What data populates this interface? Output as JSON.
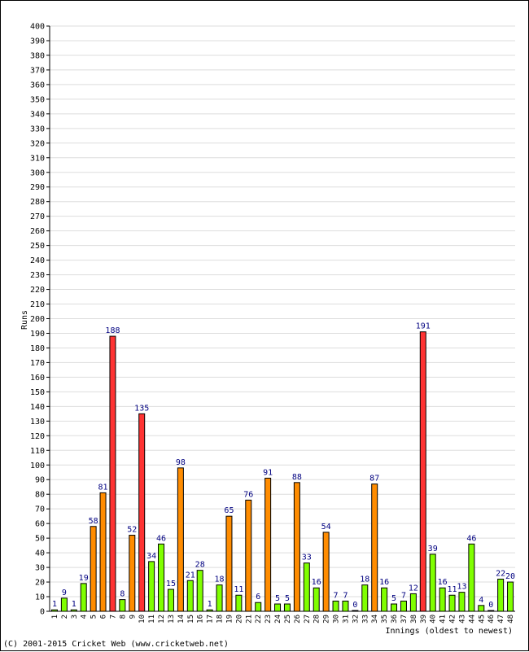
{
  "chart_data": {
    "type": "bar",
    "ylabel": "Runs",
    "xlabel": "Innings (oldest to newest)",
    "ylim": [
      0,
      400
    ],
    "ytick_step": 10,
    "grid": true,
    "colors": {
      "low": "#80ff00",
      "fifty": "#ff8c00",
      "hundred": "#ff3333",
      "label": "#000080",
      "grid": "#dddddd"
    },
    "categories": [
      "1",
      "2",
      "3",
      "4",
      "5",
      "6",
      "7",
      "8",
      "9",
      "10",
      "11",
      "12",
      "13",
      "14",
      "15",
      "16",
      "17",
      "18",
      "19",
      "20",
      "21",
      "22",
      "23",
      "24",
      "25",
      "26",
      "27",
      "28",
      "29",
      "30",
      "31",
      "32",
      "33",
      "34",
      "35",
      "36",
      "37",
      "38",
      "39",
      "40",
      "41",
      "42",
      "43",
      "44",
      "45",
      "46",
      "47",
      "48"
    ],
    "values": [
      1,
      9,
      1,
      19,
      58,
      81,
      188,
      8,
      52,
      135,
      34,
      46,
      15,
      98,
      21,
      28,
      1,
      18,
      65,
      11,
      76,
      6,
      91,
      5,
      5,
      88,
      33,
      16,
      54,
      7,
      7,
      0,
      18,
      87,
      16,
      5,
      7,
      12,
      191,
      39,
      16,
      11,
      13,
      46,
      4,
      0,
      22,
      20
    ]
  },
  "footer": "(C) 2001-2015 Cricket Web (www.cricketweb.net)"
}
